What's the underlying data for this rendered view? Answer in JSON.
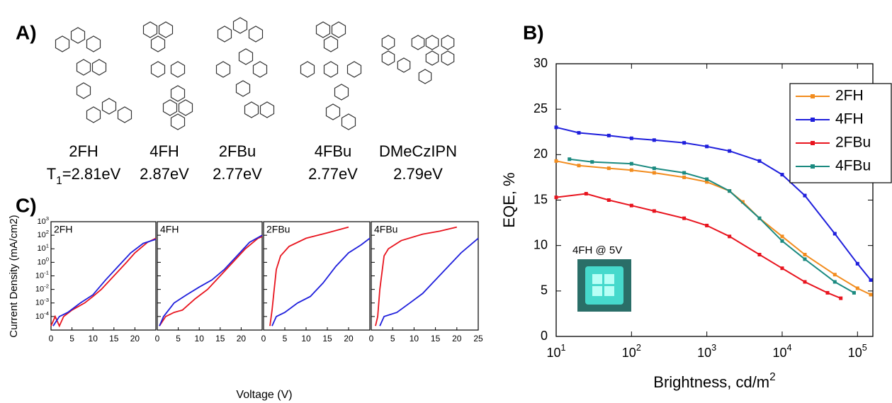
{
  "figure": {
    "panel_labels": [
      "A)",
      "B)",
      "C)"
    ],
    "molecules": [
      {
        "name": "2FH",
        "energy": "T_1=2.81eV"
      },
      {
        "name": "4FH",
        "energy": "2.87eV"
      },
      {
        "name": "2FBu",
        "energy": "2.77eV"
      },
      {
        "name": "4FBu",
        "energy": "2.77eV"
      },
      {
        "name": "DMeCzIPN",
        "energy": "2.79eV"
      }
    ],
    "panel_c": {
      "ylabel": "Current Density (mA/cm2)",
      "xlabel": "Voltage (V)"
    }
  },
  "chart_data": [
    {
      "type": "line",
      "log_x": true,
      "xlabel": "Brightness, cd/m^2",
      "ylabel": "EQE, %",
      "xlim": [
        10,
        160000
      ],
      "ylim": [
        0,
        30
      ],
      "xticks": [
        {
          "value": 10,
          "label": "10^1"
        },
        {
          "value": 100,
          "label": "10^2"
        },
        {
          "value": 1000,
          "label": "10^3"
        },
        {
          "value": 10000,
          "label": "10^4"
        },
        {
          "value": 100000,
          "label": "10^5"
        }
      ],
      "yticks": [
        0,
        5,
        10,
        15,
        20,
        25,
        30
      ],
      "legend": "upper right",
      "inset_label": "4FH @ 5V",
      "series": [
        {
          "name": "2FH",
          "color": "#f28c1e",
          "x": [
            10,
            20,
            50,
            100,
            200,
            500,
            1000,
            2000,
            3000,
            5000,
            10000,
            20000,
            50000,
            100000,
            150000
          ],
          "values": [
            19.3,
            18.8,
            18.5,
            18.3,
            18,
            17.5,
            17,
            16,
            14.8,
            13,
            11,
            9,
            6.8,
            5.3,
            4.6
          ]
        },
        {
          "name": "4FH",
          "color": "#1f1fdc",
          "x": [
            10,
            20,
            50,
            100,
            200,
            500,
            1000,
            2000,
            5000,
            10000,
            20000,
            50000,
            100000,
            150000
          ],
          "values": [
            23,
            22.4,
            22.1,
            21.8,
            21.6,
            21.3,
            20.9,
            20.4,
            19.3,
            17.8,
            15.5,
            11.3,
            8,
            6.2
          ]
        },
        {
          "name": "2FBu",
          "color": "#e8141e",
          "x": [
            10,
            25,
            50,
            100,
            200,
            500,
            1000,
            2000,
            5000,
            10000,
            20000,
            40000,
            60000
          ],
          "values": [
            15.3,
            15.7,
            15,
            14.4,
            13.8,
            13,
            12.2,
            11,
            9,
            7.5,
            6,
            4.8,
            4.2
          ]
        },
        {
          "name": "4FBu",
          "color": "#1b8a80",
          "x": [
            15,
            30,
            100,
            200,
            500,
            1000,
            2000,
            5000,
            10000,
            20000,
            50000,
            90000
          ],
          "values": [
            19.5,
            19.2,
            19,
            18.5,
            18,
            17.3,
            16,
            13,
            10.5,
            8.5,
            6,
            4.8
          ]
        }
      ]
    },
    {
      "type": "line",
      "log_y": true,
      "title": "2FH",
      "xlim": [
        0,
        25
      ],
      "ylim": [
        1e-05,
        1000
      ],
      "xticks": [
        0,
        5,
        10,
        15,
        20
      ],
      "yticks": [
        {
          "value": 1000,
          "label": "10^3"
        },
        {
          "value": 100,
          "label": "10^2"
        },
        {
          "value": 10,
          "label": "10^1"
        },
        {
          "value": 1,
          "label": "10^0"
        },
        {
          "value": 0.1,
          "label": "10^-1"
        },
        {
          "value": 0.01,
          "label": "10^-2"
        },
        {
          "value": 0.001,
          "label": "10^-3"
        },
        {
          "value": 0.0001,
          "label": "10^-4"
        }
      ],
      "series": [
        {
          "color": "#e8141e",
          "x": [
            0,
            1,
            2,
            3,
            5,
            8,
            10,
            12,
            15,
            18,
            20,
            23,
            25
          ],
          "values": [
            2e-05,
            0.0001,
            2e-05,
            0.0001,
            0.0003,
            0.001,
            0.003,
            0.01,
            0.1,
            1,
            5,
            30,
            60
          ]
        },
        {
          "color": "#1f1fdc",
          "x": [
            0.5,
            2,
            4,
            7,
            10,
            13,
            16,
            19,
            22,
            25
          ],
          "values": [
            2e-05,
            0.0001,
            0.0002,
            0.001,
            0.004,
            0.05,
            0.5,
            5,
            25,
            50
          ]
        }
      ]
    },
    {
      "type": "line",
      "log_y": true,
      "title": "4FH",
      "xlim": [
        0,
        25
      ],
      "ylim": [
        1e-05,
        1000
      ],
      "xticks": [
        0,
        5,
        10,
        15,
        20
      ],
      "yticks": [
        1000,
        100,
        10,
        1,
        0.1,
        0.01,
        0.001,
        0.0001
      ],
      "series": [
        {
          "color": "#e8141e",
          "x": [
            0.5,
            2,
            4,
            6,
            9,
            12,
            15,
            18,
            21,
            24,
            25
          ],
          "values": [
            2e-05,
            0.0001,
            0.0002,
            0.0003,
            0.002,
            0.01,
            0.1,
            1,
            10,
            60,
            80
          ]
        },
        {
          "color": "#1f1fdc",
          "x": [
            0.5,
            1.5,
            4,
            7,
            10,
            13,
            16,
            19,
            22,
            25
          ],
          "values": [
            2e-05,
            0.0001,
            0.001,
            0.004,
            0.015,
            0.05,
            0.3,
            3,
            30,
            100
          ]
        }
      ]
    },
    {
      "type": "line",
      "log_y": true,
      "title": "2FBu",
      "xlim": [
        0,
        25
      ],
      "ylim": [
        1e-05,
        1000
      ],
      "xticks": [
        0,
        5,
        10,
        15,
        20
      ],
      "yticks": [
        1000,
        100,
        10,
        1,
        0.1,
        0.01,
        0.001,
        0.0001
      ],
      "series": [
        {
          "color": "#e8141e",
          "x": [
            1.5,
            2,
            2.5,
            3,
            4,
            6,
            10,
            15,
            20
          ],
          "values": [
            2e-05,
            0.0003,
            0.01,
            0.3,
            3,
            15,
            60,
            150,
            400
          ]
        },
        {
          "color": "#1f1fdc",
          "x": [
            2,
            3,
            5,
            8,
            11,
            14,
            17,
            20,
            23,
            25
          ],
          "values": [
            2e-05,
            0.0001,
            0.0002,
            0.001,
            0.003,
            0.03,
            0.5,
            5,
            20,
            60
          ]
        }
      ]
    },
    {
      "type": "line",
      "log_y": true,
      "title": "4FBu",
      "xlim": [
        0,
        25
      ],
      "ylim": [
        1e-05,
        1000
      ],
      "xticks": [
        0,
        5,
        10,
        15,
        20,
        25
      ],
      "yticks": [
        1000,
        100,
        10,
        1,
        0.1,
        0.01,
        0.001,
        0.0001
      ],
      "series": [
        {
          "color": "#e8141e",
          "x": [
            1,
            1.5,
            2,
            3,
            4,
            7,
            12,
            16,
            20
          ],
          "values": [
            2e-05,
            0.0001,
            0.01,
            3,
            10,
            40,
            120,
            200,
            400
          ]
        },
        {
          "color": "#1f1fdc",
          "x": [
            2,
            3,
            6,
            9,
            12,
            15,
            18,
            21,
            25
          ],
          "values": [
            2e-05,
            0.0001,
            0.0002,
            0.001,
            0.005,
            0.05,
            0.5,
            5,
            60
          ]
        }
      ]
    }
  ]
}
